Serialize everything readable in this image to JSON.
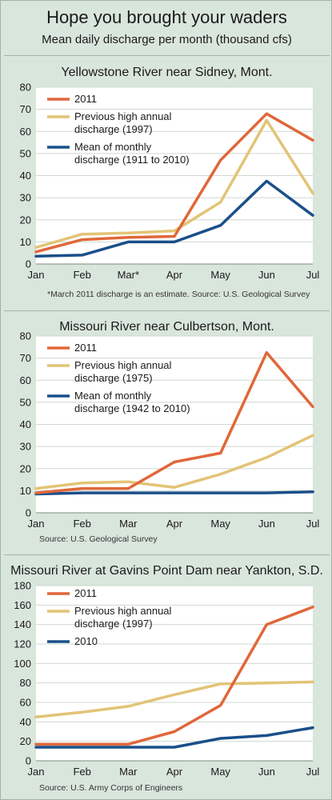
{
  "title": "Hope you brought your waders",
  "subtitle": "Mean daily discharge per month (thousand cfs)",
  "colors": {
    "s2011": "#e0673a",
    "high": "#e2c476",
    "mean": "#1a4f8a",
    "background": "#d9e6dc"
  },
  "chart_data": [
    {
      "type": "line",
      "title": "Yellowstone River near Sidney, Mont.",
      "categories": [
        "Jan",
        "Feb",
        "Mar*",
        "Apr",
        "May",
        "Jun",
        "Jul"
      ],
      "ylim": [
        0,
        80
      ],
      "yticks": [
        "0",
        "10",
        "20",
        "30",
        "40",
        "50",
        "60",
        "70",
        "80"
      ],
      "legend_placement": "top-left",
      "series": [
        {
          "name": "2011",
          "values": [
            5.5,
            11,
            12,
            12.5,
            47,
            68,
            56
          ]
        },
        {
          "name": "Previous high annual discharge (1997)",
          "values": [
            7.5,
            13.5,
            14,
            15,
            28,
            65,
            32
          ]
        },
        {
          "name": "Mean of monthly discharge (1911 to 2010)",
          "values": [
            3.5,
            4,
            10,
            10,
            17.5,
            37.5,
            22
          ]
        }
      ],
      "legend": [
        {
          "lines": [
            "2011"
          ]
        },
        {
          "lines": [
            "Previous high annual",
            "discharge (1997)"
          ]
        },
        {
          "lines": [
            "Mean of monthly",
            "discharge (1911 to 2010)"
          ]
        }
      ],
      "notes": "*March 2011 discharge is an estimate.   Source: U.S. Geological Survey"
    },
    {
      "type": "line",
      "title": "Missouri River near Culbertson, Mont.",
      "categories": [
        "Jan",
        "Feb",
        "Mar",
        "Apr",
        "May",
        "Jun",
        "Jul"
      ],
      "ylim": [
        0,
        80
      ],
      "yticks": [
        "0",
        "10",
        "20",
        "30",
        "40",
        "50",
        "60",
        "70",
        "80"
      ],
      "legend_placement": "top-left",
      "series": [
        {
          "name": "2011",
          "values": [
            9,
            11,
            11,
            23,
            27,
            72.5,
            48
          ]
        },
        {
          "name": "Previous high annual discharge (1975)",
          "values": [
            11,
            13.5,
            14,
            11.5,
            17.5,
            25,
            35
          ]
        },
        {
          "name": "Mean of monthly discharge (1942 to 2010)",
          "values": [
            8.5,
            9,
            9,
            9,
            9,
            9,
            9.5
          ]
        }
      ],
      "legend": [
        {
          "lines": [
            "2011"
          ]
        },
        {
          "lines": [
            "Previous high annual",
            "discharge (1975)"
          ]
        },
        {
          "lines": [
            "Mean of monthly",
            "discharge (1942 to 2010)"
          ]
        }
      ],
      "notes": "Source: U.S. Geological Survey"
    },
    {
      "type": "line",
      "title": "Missouri River at Gavins Point Dam near Yankton, S.D.",
      "categories": [
        "Jan",
        "Feb",
        "Mar",
        "Apr",
        "May",
        "Jun",
        "Jul"
      ],
      "ylim": [
        0,
        180
      ],
      "yticks": [
        "0",
        "20",
        "40",
        "60",
        "80",
        "100",
        "120",
        "140",
        "160",
        "180"
      ],
      "legend_placement": "top-left",
      "series": [
        {
          "name": "2011",
          "values": [
            17,
            17,
            17,
            30,
            57,
            140,
            158
          ]
        },
        {
          "name": "Previous high annual discharge (1997)",
          "values": [
            45,
            50,
            56,
            68,
            79,
            80,
            81
          ]
        },
        {
          "name": "2010",
          "values": [
            14,
            14,
            14,
            14,
            23,
            26,
            34
          ]
        }
      ],
      "legend": [
        {
          "lines": [
            "2011"
          ]
        },
        {
          "lines": [
            "Previous high annual",
            "discharge (1997)"
          ]
        },
        {
          "lines": [
            "2010"
          ]
        }
      ],
      "notes": "Source: U.S. Army Corps of Engineers"
    }
  ]
}
